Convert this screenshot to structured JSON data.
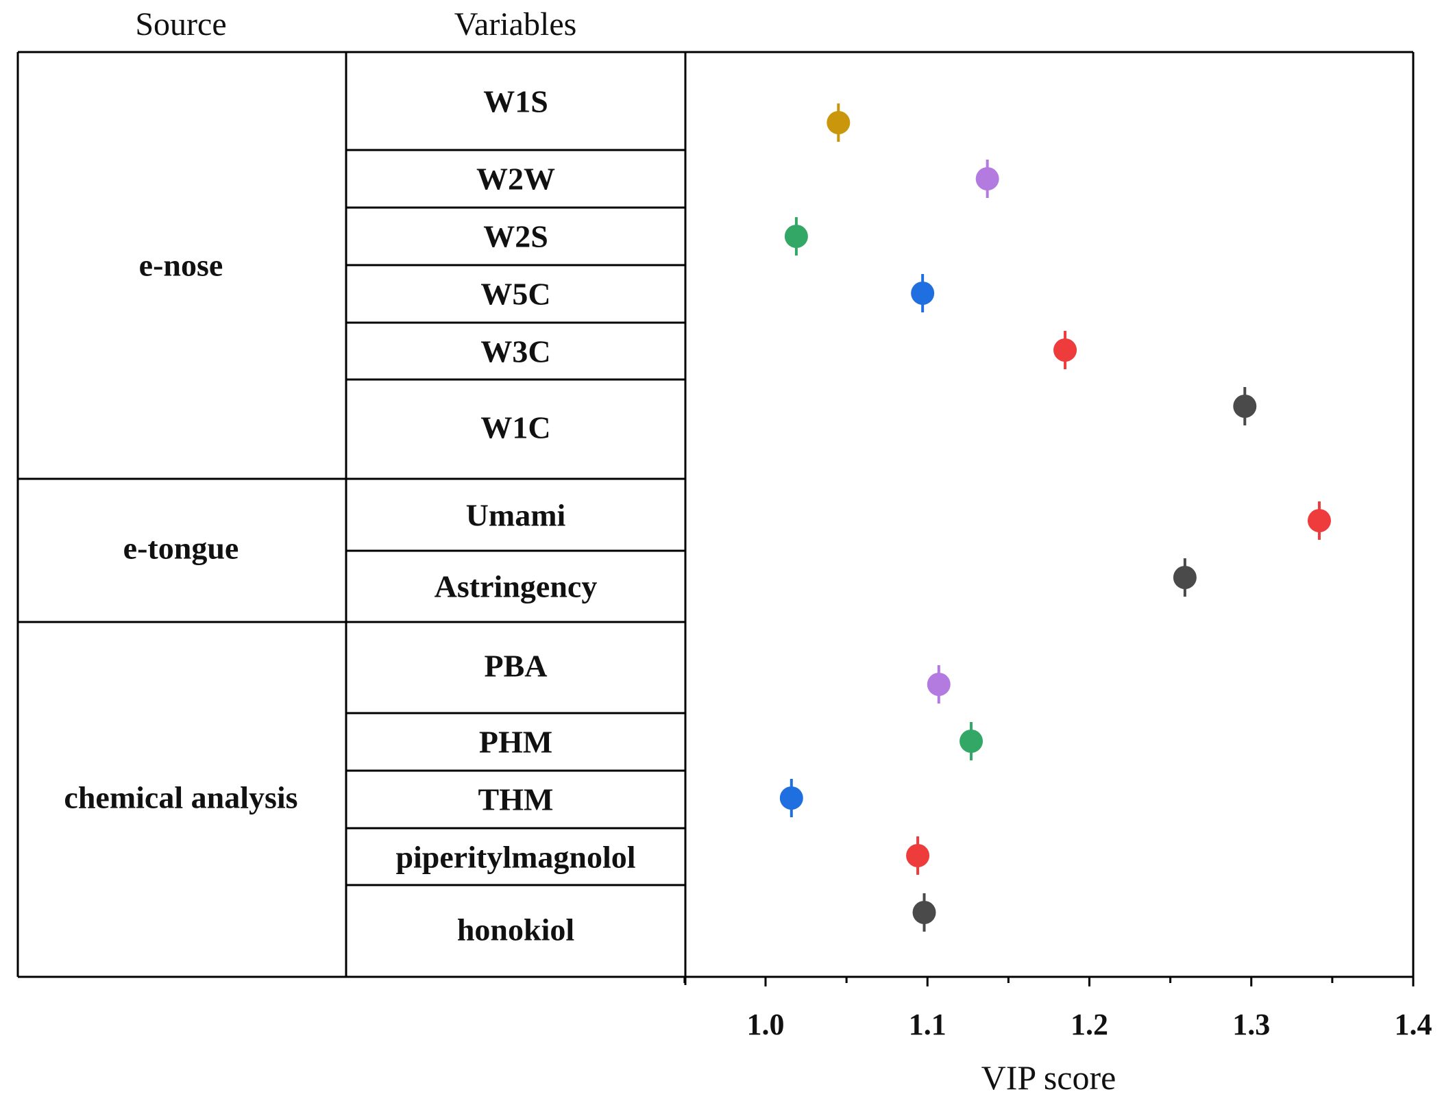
{
  "headers": {
    "source": "Source",
    "variables": "Variables"
  },
  "sources": [
    "e-nose",
    "e-tongue",
    "chemical analysis"
  ],
  "chart_data": {
    "type": "scatter",
    "title": "",
    "xlabel": "VIP score",
    "ylabel": "Variables",
    "xlim": [
      0.95,
      1.4
    ],
    "xticks": [
      "1.0",
      "1.1",
      "1.2",
      "1.3",
      "1.4"
    ],
    "groups": [
      {
        "source": "e-nose",
        "variables": [
          "W1S",
          "W2W",
          "W2S",
          "W5C",
          "W3C",
          "W1C"
        ]
      },
      {
        "source": "e-tongue",
        "variables": [
          "Umami",
          "Astringency"
        ]
      },
      {
        "source": "chemical analysis",
        "variables": [
          "PBA",
          "PHM",
          "THM",
          "piperitylmagnolol",
          "honokiol"
        ]
      }
    ],
    "points": [
      {
        "variable": "W1S",
        "vip": 1.045,
        "color": "#C9960C"
      },
      {
        "variable": "W2W",
        "vip": 1.137,
        "color": "#B37BE0"
      },
      {
        "variable": "W2S",
        "vip": 1.019,
        "color": "#33A866"
      },
      {
        "variable": "W5C",
        "vip": 1.097,
        "color": "#1F6FE0"
      },
      {
        "variable": "W3C",
        "vip": 1.185,
        "color": "#EE3B3B"
      },
      {
        "variable": "W1C",
        "vip": 1.296,
        "color": "#4A4A4A"
      },
      {
        "variable": "Umami",
        "vip": 1.342,
        "color": "#EE3B3B"
      },
      {
        "variable": "Astringency",
        "vip": 1.259,
        "color": "#4A4A4A"
      },
      {
        "variable": "PBA",
        "vip": 1.107,
        "color": "#B37BE0"
      },
      {
        "variable": "PHM",
        "vip": 1.127,
        "color": "#33A866"
      },
      {
        "variable": "THM",
        "vip": 1.016,
        "color": "#1F6FE0"
      },
      {
        "variable": "piperitylmagnolol",
        "vip": 1.094,
        "color": "#EE3B3B"
      },
      {
        "variable": "honokiol",
        "vip": 1.098,
        "color": "#4A4A4A"
      }
    ]
  }
}
